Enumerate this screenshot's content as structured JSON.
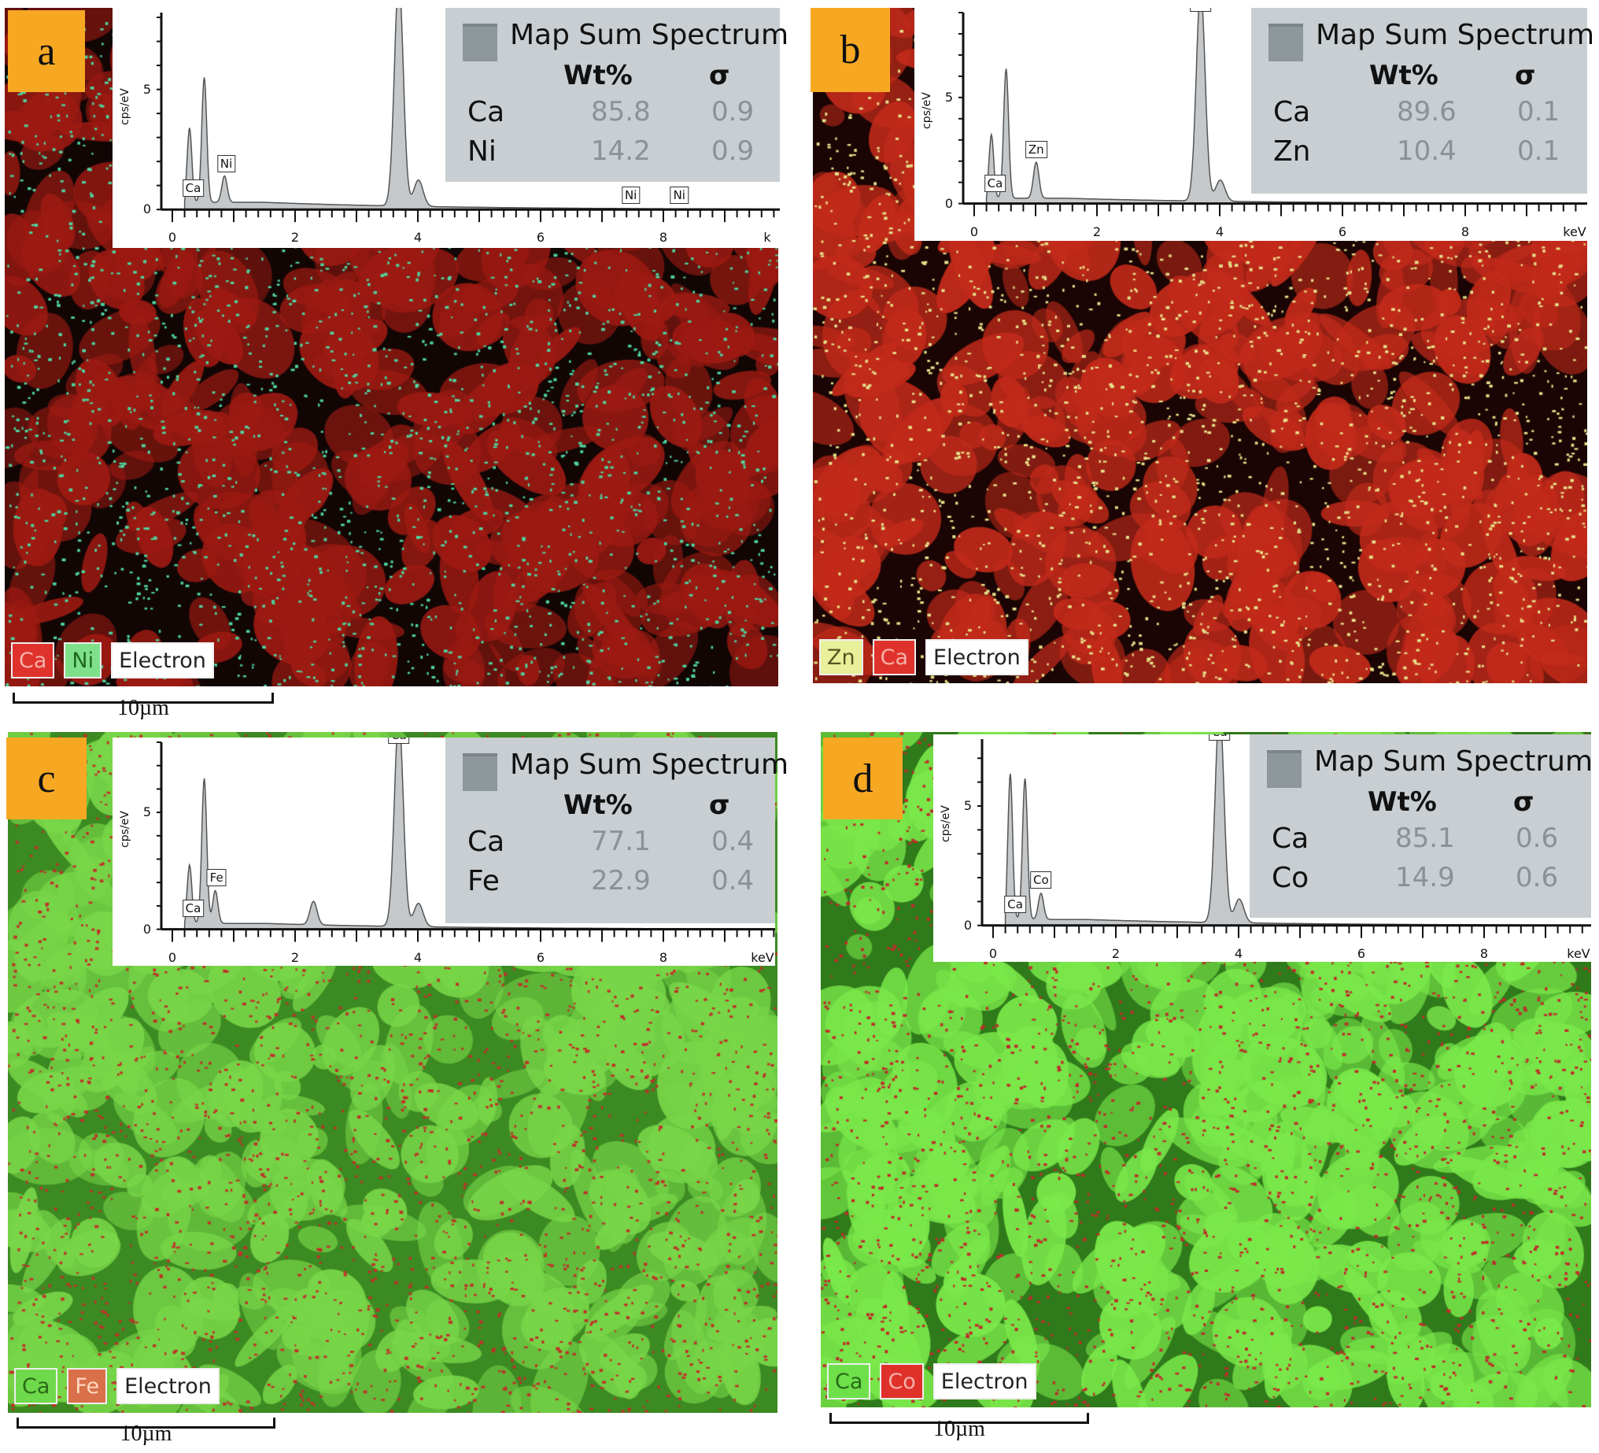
{
  "panels": [
    {
      "label": "a",
      "legend_title": "Map Sum Spectrum",
      "col_wt": "Wt%",
      "col_sigma": "σ",
      "rows": [
        {
          "el": "Ca",
          "wt": "85.8",
          "sigma": "0.9"
        },
        {
          "el": "Ni",
          "wt": "14.2",
          "sigma": "0.9"
        }
      ],
      "chips": [
        {
          "text": "Ca",
          "bg": "#e0322c",
          "fg": "#f5b0a8"
        },
        {
          "text": "Ni",
          "bg": "#7fe08a",
          "fg": "#1c6a20"
        },
        {
          "text": "Electron",
          "bg": "#ffffff",
          "fg": "#222222"
        }
      ],
      "scale": "10µm",
      "map": {
        "base": "#120605",
        "blob": "#9c1a12",
        "dot": "#4fd4a0"
      }
    },
    {
      "label": "b",
      "legend_title": "Map Sum Spectrum",
      "col_wt": "Wt%",
      "col_sigma": "σ",
      "rows": [
        {
          "el": "Ca",
          "wt": "89.6",
          "sigma": "0.1"
        },
        {
          "el": "Zn",
          "wt": "10.4",
          "sigma": "0.1"
        }
      ],
      "chips": [
        {
          "text": "Zn",
          "bg": "#e8f09a",
          "fg": "#555522"
        },
        {
          "text": "Ca",
          "bg": "#e0322c",
          "fg": "#f5b0a8"
        },
        {
          "text": "Electron",
          "bg": "#ffffff",
          "fg": "#222222"
        }
      ],
      "scale": "",
      "map": {
        "base": "#1a0504",
        "blob": "#c22a1a",
        "dot": "#e8e08a"
      }
    },
    {
      "label": "c",
      "legend_title": "Map Sum Spectrum",
      "col_wt": "Wt%",
      "col_sigma": "σ",
      "rows": [
        {
          "el": "Ca",
          "wt": "77.1",
          "sigma": "0.4"
        },
        {
          "el": "Fe",
          "wt": "22.9",
          "sigma": "0.4"
        }
      ],
      "chips": [
        {
          "text": "Ca",
          "bg": "#6ed94a",
          "fg": "#2a6a1a"
        },
        {
          "text": "Fe",
          "bg": "#d9704a",
          "fg": "#ffd8c0"
        },
        {
          "text": "Electron",
          "bg": "#ffffff",
          "fg": "#222222"
        }
      ],
      "scale": "10µm",
      "map": {
        "base": "#3c8a22",
        "blob": "#78d648",
        "dot": "#c03028"
      }
    },
    {
      "label": "d",
      "legend_title": "Map Sum Spectrum",
      "col_wt": "Wt%",
      "col_sigma": "σ",
      "rows": [
        {
          "el": "Ca",
          "wt": "85.1",
          "sigma": "0.6"
        },
        {
          "el": "Co",
          "wt": "14.9",
          "sigma": "0.6"
        }
      ],
      "chips": [
        {
          "text": "Ca",
          "bg": "#6ee04a",
          "fg": "#2a6a1a"
        },
        {
          "text": "Co",
          "bg": "#e0302a",
          "fg": "#f5b0a8"
        },
        {
          "text": "Electron",
          "bg": "#ffffff",
          "fg": "#222222"
        }
      ],
      "scale": "10µm",
      "map": {
        "base": "#2f7a1a",
        "blob": "#7ae84a",
        "dot": "#c02a2a"
      }
    }
  ],
  "chart_data": [
    {
      "type": "line",
      "panel": "a",
      "ylabel": "cps/eV",
      "xlabel": "k",
      "xlim": [
        0,
        9.8
      ],
      "ylim": [
        0,
        8.2
      ],
      "xticks": [
        "0",
        "2",
        "4",
        "6",
        "8"
      ],
      "yticks": [
        "0",
        "5"
      ],
      "background": 0.3,
      "peaks": [
        {
          "kev": 0.28,
          "cps": 3.1
        },
        {
          "kev": 0.52,
          "cps": 5.2
        },
        {
          "kev": 0.85,
          "cps": 1.1
        },
        {
          "kev": 3.69,
          "cps": 9.5
        },
        {
          "kev": 4.01,
          "cps": 1.1
        }
      ],
      "peak_labels": [
        {
          "text": "Ca",
          "kev": 0.34,
          "cps": 0.4
        },
        {
          "text": "Ni",
          "kev": 0.88,
          "cps": 1.4
        },
        {
          "text": "Ca",
          "kev": 3.69,
          "cps": 8.3
        },
        {
          "text": "Ni",
          "kev": 7.47,
          "cps": 0.1
        },
        {
          "text": "Ni",
          "kev": 8.26,
          "cps": 0.1
        }
      ]
    },
    {
      "type": "line",
      "panel": "b",
      "ylabel": "cps/eV",
      "xlabel": "keV",
      "xlim": [
        0,
        10
      ],
      "ylim": [
        0,
        9
      ],
      "xticks": [
        "0",
        "2",
        "4",
        "6",
        "8"
      ],
      "yticks": [
        "0",
        "5"
      ],
      "background": 0.25,
      "peaks": [
        {
          "kev": 0.28,
          "cps": 3.0
        },
        {
          "kev": 0.52,
          "cps": 6.1
        },
        {
          "kev": 1.01,
          "cps": 1.7
        },
        {
          "kev": 3.69,
          "cps": 10
        },
        {
          "kev": 4.01,
          "cps": 1.0
        }
      ],
      "peak_labels": [
        {
          "text": "Ca",
          "kev": 0.34,
          "cps": 0.4
        },
        {
          "text": "Zn",
          "kev": 1.01,
          "cps": 2.0
        },
        {
          "text": "Ca",
          "kev": 3.69,
          "cps": 8.9
        }
      ]
    },
    {
      "type": "line",
      "panel": "c",
      "ylabel": "cps/eV",
      "xlabel": "keV",
      "xlim": [
        0,
        10
      ],
      "ylim": [
        0,
        8
      ],
      "xticks": [
        "0",
        "2",
        "4",
        "6",
        "8"
      ],
      "yticks": [
        "0",
        "5"
      ],
      "background": 0.25,
      "peaks": [
        {
          "kev": 0.28,
          "cps": 2.5
        },
        {
          "kev": 0.52,
          "cps": 6.2
        },
        {
          "kev": 0.7,
          "cps": 1.4
        },
        {
          "kev": 2.3,
          "cps": 1.0
        },
        {
          "kev": 3.69,
          "cps": 9
        },
        {
          "kev": 4.01,
          "cps": 1.0
        }
      ],
      "peak_labels": [
        {
          "text": "Ca",
          "kev": 0.34,
          "cps": 0.4
        },
        {
          "text": "Fe",
          "kev": 0.72,
          "cps": 1.7
        },
        {
          "text": "Ca",
          "kev": 3.69,
          "cps": 7.8
        }
      ]
    },
    {
      "type": "line",
      "panel": "d",
      "ylabel": "cps/eV",
      "xlabel": "keV",
      "xlim": [
        0,
        10
      ],
      "ylim": [
        0,
        7.8
      ],
      "xticks": [
        "0",
        "2",
        "4",
        "6",
        "8"
      ],
      "yticks": [
        "0",
        "5"
      ],
      "background": 0.25,
      "peaks": [
        {
          "kev": 0.28,
          "cps": 6.1
        },
        {
          "kev": 0.52,
          "cps": 5.9
        },
        {
          "kev": 0.78,
          "cps": 1.1
        },
        {
          "kev": 3.69,
          "cps": 9
        },
        {
          "kev": 4.01,
          "cps": 1.0
        }
      ],
      "peak_labels": [
        {
          "text": "Ca",
          "kev": 0.36,
          "cps": 0.4
        },
        {
          "text": "Co",
          "kev": 0.78,
          "cps": 1.4
        },
        {
          "text": "Ca",
          "kev": 3.69,
          "cps": 7.6
        }
      ]
    }
  ]
}
